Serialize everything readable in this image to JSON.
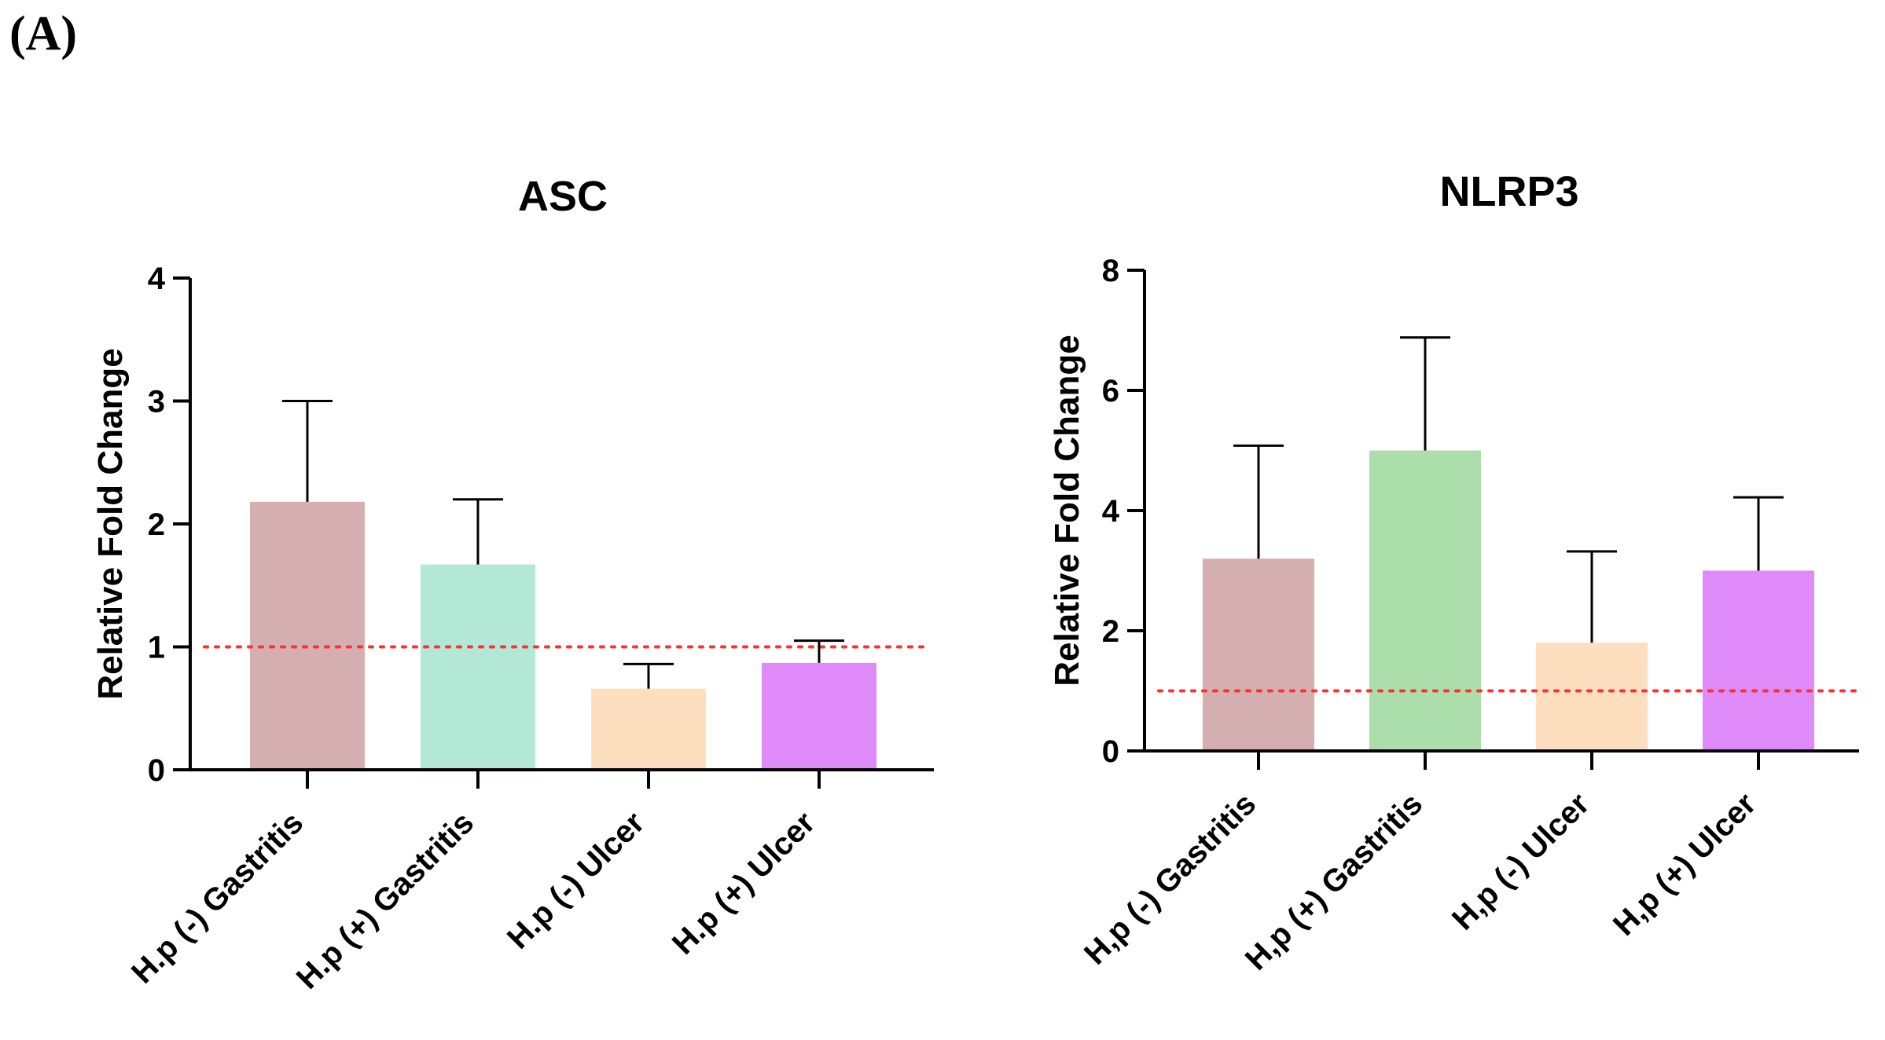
{
  "panel_label": "(A)",
  "chart_data": [
    {
      "type": "bar",
      "title": "ASC",
      "xlabel": "",
      "ylabel": "Relative Fold Change",
      "ylim": [
        0,
        4
      ],
      "yticks": [
        0,
        1,
        2,
        3,
        4
      ],
      "categories": [
        "H.p (-) Gastritis",
        "H.p (+) Gastritis",
        "H.p (-) Ulcer",
        "H.p (+) Ulcer"
      ],
      "values": [
        2.18,
        1.67,
        0.66,
        0.87
      ],
      "error_upper": [
        3.0,
        2.2,
        0.86,
        1.05
      ],
      "colors": [
        "#d5afaf",
        "#b3e8d6",
        "#fddfc0",
        "#de8af8"
      ],
      "reference_line": {
        "value": 1,
        "color": "#ff3030",
        "style": "dotted"
      }
    },
    {
      "type": "bar",
      "title": "NLRP3",
      "xlabel": "",
      "ylabel": "Relative Fold Change",
      "ylim": [
        0,
        8
      ],
      "yticks": [
        0,
        2,
        4,
        6,
        8
      ],
      "categories": [
        "H,p (-) Gastritis",
        "H,p (+) Gastritis",
        "H,p (-) Ulcer",
        "H,p (+) Ulcer"
      ],
      "values": [
        3.2,
        5.0,
        1.8,
        3.0
      ],
      "error_upper": [
        5.08,
        6.88,
        3.32,
        4.22
      ],
      "colors": [
        "#d5afaf",
        "#acdeac",
        "#fddfc0",
        "#de8af8"
      ],
      "reference_line": {
        "value": 1,
        "color": "#ff3030",
        "style": "dotted"
      }
    }
  ]
}
